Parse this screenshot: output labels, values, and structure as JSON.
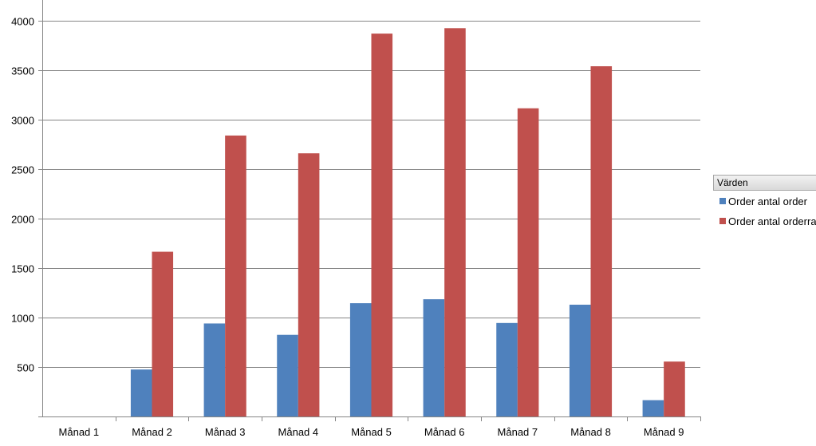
{
  "chart_data": {
    "type": "bar",
    "title": "",
    "xlabel": "",
    "ylabel": "",
    "ylim": [
      0,
      4000
    ],
    "yticks": [
      500,
      1000,
      1500,
      2000,
      2500,
      3000,
      3500,
      4000
    ],
    "grid": true,
    "legend_position": "right",
    "legend_title": "Värden",
    "categories": [
      "Månad 1",
      "Månad 2",
      "Månad 3",
      "Månad 4",
      "Månad 5",
      "Månad 6",
      "Månad 7",
      "Månad 8",
      "Månad 9"
    ],
    "series": [
      {
        "name": "Order antal order",
        "color": "#4f81bd",
        "values": [
          0,
          475,
          940,
          825,
          1145,
          1185,
          945,
          1130,
          165
        ]
      },
      {
        "name": "Order antal orderrader",
        "color": "#c0504d",
        "values": [
          0,
          1665,
          2840,
          2660,
          3870,
          3925,
          3115,
          3540,
          555
        ]
      }
    ]
  }
}
